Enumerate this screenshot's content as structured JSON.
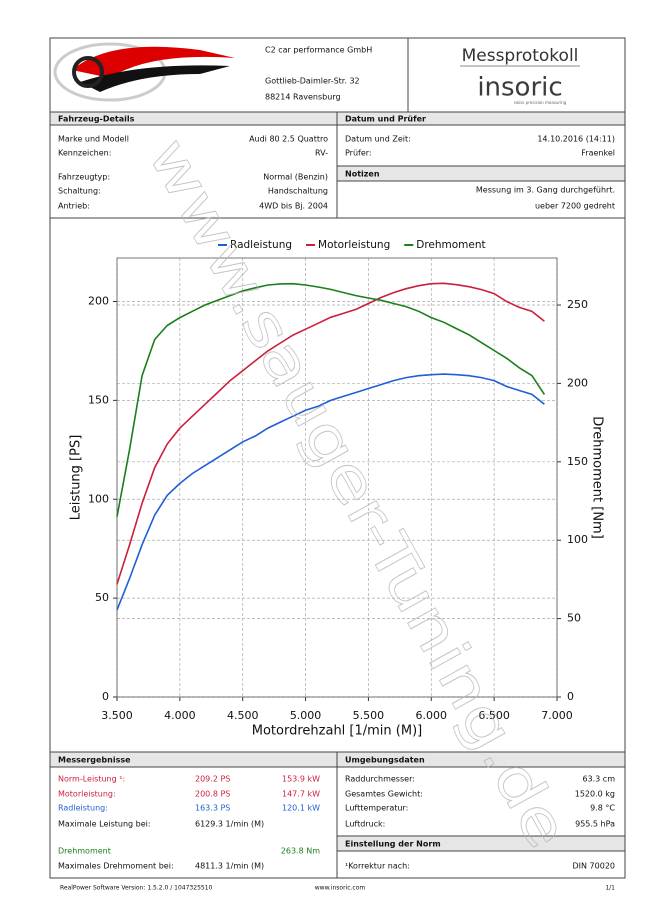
{
  "header": {
    "company": "C2 car performance GmbH",
    "street": "Gottlieb-Daimler-Str. 32",
    "city": "88214 Ravensburg",
    "title": "Messprotokoll",
    "brand": "insoric",
    "tagline": "swiss precision measuring"
  },
  "vehicle": {
    "title": "Fahrzeug-Details",
    "rows": [
      [
        "Marke und Modell",
        "Audi 80 2.5 Quattro"
      ],
      [
        "Kennzeichen:",
        "RV-"
      ],
      [
        "Fahrzeugtyp:",
        "Normal (Benzin)"
      ],
      [
        "Schaltung:",
        "Handschaltung"
      ],
      [
        "Antrieb:",
        "4WD bis Bj. 2004"
      ]
    ]
  },
  "inspection": {
    "title": "Datum und Prüfer",
    "rows": [
      [
        "Datum und Zeit:",
        "14.10.2016 (14:11)"
      ],
      [
        "Prüfer:",
        "Fraenkel"
      ]
    ]
  },
  "notes": {
    "title": "Notizen",
    "lines": [
      "Messung im 3. Gang durchgeführt.",
      "ueber 7200 gedreht"
    ]
  },
  "chart_data": {
    "type": "line",
    "x_label": "Motordrehzahl [1/min (M)]",
    "y_label": "Leistung [PS]",
    "y2_label": "Drehmoment [Nm]",
    "x": [
      3.5,
      3.6,
      3.7,
      3.8,
      3.9,
      4.0,
      4.1,
      4.2,
      4.3,
      4.4,
      4.5,
      4.6,
      4.7,
      4.8,
      4.9,
      5.0,
      5.1,
      5.2,
      5.3,
      5.4,
      5.5,
      5.6,
      5.7,
      5.8,
      5.9,
      6.0,
      6.1,
      6.2,
      6.3,
      6.4,
      6.5,
      6.6,
      6.7,
      6.8,
      6.9
    ],
    "series": [
      {
        "name": "Radleistung",
        "color": "#1f5fd6",
        "values": [
          44,
          60,
          77,
          92,
          102,
          108,
          113,
          117,
          121,
          125,
          129,
          132,
          136,
          139,
          142,
          145,
          147,
          150,
          152,
          154,
          156,
          158,
          160,
          161.5,
          162.5,
          163,
          163.3,
          163,
          162.5,
          161.5,
          160,
          157,
          155,
          153,
          148
        ]
      },
      {
        "name": "Motorleistung",
        "color": "#cc1f3c",
        "values": [
          57,
          77,
          98,
          116,
          128,
          136,
          142,
          148,
          154,
          160,
          165,
          170,
          175,
          179,
          183,
          186,
          189,
          192,
          194,
          196,
          199,
          202,
          204.5,
          206.5,
          208,
          209,
          209.2,
          208.5,
          207.5,
          206,
          204,
          200,
          197,
          195,
          190
        ]
      },
      {
        "name": "Drehmoment",
        "color": "#1a7f1a",
        "axis": "y2",
        "values": [
          115,
          158,
          205,
          228,
          237,
          242,
          246,
          250,
          253,
          256,
          259,
          261,
          262.8,
          263.5,
          263.6,
          262.8,
          261.5,
          260,
          258,
          256,
          254.5,
          253,
          251,
          249,
          246,
          242,
          239,
          235,
          231,
          226,
          221,
          216,
          210,
          205,
          193
        ]
      }
    ],
    "xlim": [
      3.5,
      7.0
    ],
    "xticks": [
      {
        "value": 3.5,
        "label": "3.500"
      },
      {
        "value": 4.0,
        "label": "4.000"
      },
      {
        "value": 4.5,
        "label": "4.500"
      },
      {
        "value": 5.0,
        "label": "5.000"
      },
      {
        "value": 5.5,
        "label": "5.500"
      },
      {
        "value": 6.0,
        "label": "6.000"
      },
      {
        "value": 6.5,
        "label": "6.500"
      },
      {
        "value": 7.0,
        "label": "7.000"
      }
    ],
    "ylim": [
      0,
      222
    ],
    "yticks": [
      0,
      50,
      100,
      150,
      200
    ],
    "y2lim": [
      0,
      280
    ],
    "y2ticks": [
      0,
      50,
      100,
      150,
      200,
      250
    ],
    "grid": true
  },
  "results": {
    "title": "Messergebnisse",
    "rows": [
      {
        "label": "Norm-Leistung ¹:",
        "value": "209.2 PS",
        "value2": "153.9 kW",
        "color": "#cc1f3c"
      },
      {
        "label": "Motorleistung:",
        "value": "200.8 PS",
        "value2": "147.7 kW",
        "color": "#cc1f3c"
      },
      {
        "label": "Radleistung:",
        "value": "163.3 PS",
        "value2": "120.1 kW",
        "color": "#1f5fd6"
      },
      {
        "label": "Maximale Leistung bei:",
        "value": "6129.3 1/min (M)"
      },
      {
        "label": "Drehmoment",
        "value2": "263.8 Nm",
        "color": "#1a7f1a"
      },
      {
        "label": "Maximales Drehmoment bei:",
        "value": "4811.3 1/min (M)"
      }
    ]
  },
  "environment": {
    "title": "Umgebungsdaten",
    "rows": [
      [
        "Raddurchmesser:",
        "63.3 cm"
      ],
      [
        "Gesamtes Gewicht:",
        "1520.0 kg"
      ],
      [
        "Lufttemperatur:",
        "9.8 °C"
      ],
      [
        "Luftdruck:",
        "955.5 hPa"
      ]
    ]
  },
  "norm": {
    "title": "Einstellung der Norm",
    "rows": [
      [
        "¹Korrektur nach:",
        "DIN 70020"
      ]
    ]
  },
  "footer": {
    "version": "RealPower Software Version: 1.5.2.0 / 1047325510",
    "url": "www.insoric.com",
    "page": "1/1"
  },
  "watermark": "www.sauger-Tuning.de"
}
